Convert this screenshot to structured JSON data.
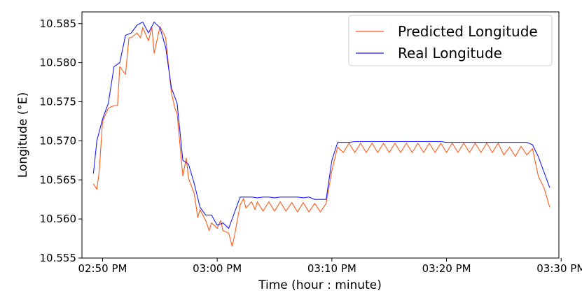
{
  "chart_data": {
    "type": "line",
    "title": "",
    "xlabel": "Time (hour : minute)",
    "ylabel": "Longitude ($^\\circ$E)",
    "ylabel_display": "Longitude (°E)",
    "x_unit": "minutes since 02:50 PM",
    "xlim": [
      -1.8,
      39.8
    ],
    "ylim": [
      10.555,
      10.5865
    ],
    "x_ticks": [
      {
        "value": 0,
        "label": "02:50 PM"
      },
      {
        "value": 10,
        "label": "03:00 PM"
      },
      {
        "value": 20,
        "label": "03:10 PM"
      },
      {
        "value": 30,
        "label": "03:20 PM"
      },
      {
        "value": 40,
        "label": "03:30 PM"
      }
    ],
    "y_ticks": [
      {
        "value": 10.555,
        "label": "10.555"
      },
      {
        "value": 10.56,
        "label": "10.560"
      },
      {
        "value": 10.565,
        "label": "10.565"
      },
      {
        "value": 10.57,
        "label": "10.570"
      },
      {
        "value": 10.575,
        "label": "10.575"
      },
      {
        "value": 10.58,
        "label": "10.580"
      },
      {
        "value": 10.585,
        "label": "10.585"
      }
    ],
    "grid": false,
    "legend_position": "top-right",
    "series": [
      {
        "name": "Predicted Longitude",
        "color": "#ff5a1a",
        "x": [
          -0.8,
          -0.5,
          -0.3,
          0,
          0.5,
          1,
          1.3,
          1.5,
          2,
          2.3,
          2.5,
          3,
          3.3,
          3.5,
          4,
          4.3,
          4.5,
          5,
          5.3,
          5.5,
          6,
          6.3,
          6.5,
          7,
          7.3,
          7.5,
          8,
          8.3,
          8.5,
          9,
          9.3,
          9.5,
          10,
          10.3,
          10.5,
          11,
          11.3,
          11.5,
          12,
          12.3,
          12.5,
          13,
          13.3,
          13.5,
          14,
          14.5,
          15,
          15.5,
          16,
          16.5,
          17,
          17.5,
          18,
          18.5,
          19,
          19.5,
          20,
          20.5,
          21,
          21.5,
          22,
          22.5,
          23,
          23.5,
          24,
          24.5,
          25,
          25.5,
          26,
          26.5,
          27,
          27.5,
          28,
          28.5,
          29,
          29.5,
          30,
          30.5,
          31,
          31.5,
          32,
          32.5,
          33,
          33.5,
          34,
          34.5,
          35,
          35.5,
          36,
          36.5,
          37,
          37.5,
          38,
          38.5,
          39
        ],
        "values": [
          10.5645,
          10.5638,
          10.566,
          10.5725,
          10.5742,
          10.5745,
          10.5745,
          10.5795,
          10.5785,
          10.5832,
          10.5832,
          10.5838,
          10.5832,
          10.5845,
          10.5828,
          10.5845,
          10.5812,
          10.5846,
          10.5838,
          10.5832,
          10.5762,
          10.5742,
          10.5735,
          10.5655,
          10.5678,
          10.5652,
          10.5632,
          10.5602,
          10.5612,
          10.5598,
          10.5585,
          10.5595,
          10.5588,
          10.5598,
          10.5585,
          10.5582,
          10.5565,
          10.5578,
          10.5618,
          10.5626,
          10.5614,
          10.5622,
          10.5612,
          10.5622,
          10.561,
          10.5622,
          10.561,
          10.5622,
          10.561,
          10.5621,
          10.5609,
          10.5621,
          10.5609,
          10.562,
          10.5609,
          10.562,
          10.5662,
          10.5692,
          10.5685,
          10.5697,
          10.5685,
          10.5697,
          10.5685,
          10.5697,
          10.5685,
          10.5697,
          10.5685,
          10.5697,
          10.5685,
          10.5697,
          10.5685,
          10.5697,
          10.5685,
          10.5697,
          10.5685,
          10.5697,
          10.5685,
          10.5697,
          10.5685,
          10.5697,
          10.5685,
          10.5697,
          10.5685,
          10.5697,
          10.5685,
          10.5697,
          10.5682,
          10.5692,
          10.568,
          10.5693,
          10.5682,
          10.569,
          10.5655,
          10.564,
          10.5615
        ]
      },
      {
        "name": "Real Longitude",
        "color": "#1a1aff",
        "x": [
          -0.8,
          -0.5,
          0,
          0.5,
          1,
          1.5,
          2,
          2.5,
          3,
          3.5,
          4,
          4.5,
          5,
          5.5,
          6,
          6.5,
          7,
          7.5,
          8,
          8.5,
          9,
          9.5,
          10,
          10.5,
          11,
          11.5,
          12,
          12.5,
          13,
          13.5,
          14,
          14.5,
          15,
          15.5,
          16,
          16.5,
          17,
          17.5,
          18,
          18.5,
          19,
          19.5,
          20,
          20.5,
          21,
          21.5,
          22,
          22.5,
          23,
          23.5,
          24,
          24.5,
          25,
          25.5,
          26,
          26.5,
          27,
          27.5,
          28,
          28.5,
          29,
          29.5,
          30,
          30.5,
          31,
          31.5,
          32,
          32.5,
          33,
          33.5,
          34,
          34.5,
          35,
          35.5,
          36,
          36.5,
          37,
          37.5,
          38,
          38.5,
          39
        ],
        "values": [
          10.5658,
          10.57,
          10.5728,
          10.5748,
          10.5795,
          10.58,
          10.5835,
          10.5838,
          10.5848,
          10.5852,
          10.5838,
          10.5852,
          10.5845,
          10.582,
          10.5768,
          10.5748,
          10.5675,
          10.567,
          10.5645,
          10.5615,
          10.5605,
          10.5605,
          10.5592,
          10.5595,
          10.5588,
          10.5608,
          10.5628,
          10.5628,
          10.5628,
          10.5627,
          10.5628,
          10.5628,
          10.5627,
          10.5628,
          10.5628,
          10.5628,
          10.5628,
          10.5627,
          10.5628,
          10.5625,
          10.5625,
          10.5625,
          10.5675,
          10.5698,
          10.5698,
          10.5698,
          10.5699,
          10.5699,
          10.5699,
          10.5699,
          10.5699,
          10.5699,
          10.5699,
          10.5699,
          10.5699,
          10.5699,
          10.5699,
          10.5699,
          10.5699,
          10.5699,
          10.5699,
          10.5699,
          10.5698,
          10.5698,
          10.5698,
          10.5698,
          10.5698,
          10.5698,
          10.5698,
          10.5698,
          10.5698,
          10.5698,
          10.5698,
          10.5698,
          10.5698,
          10.5698,
          10.5698,
          10.5695,
          10.568,
          10.566,
          10.564
        ]
      }
    ]
  }
}
